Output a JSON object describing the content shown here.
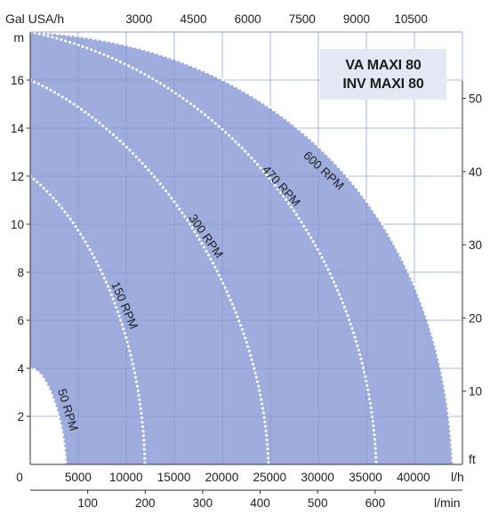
{
  "title": {
    "line1": "VA MAXI 80",
    "line2": "INV MAXI 80"
  },
  "colors": {
    "envelope": "#9fadde",
    "grid": "#7f94cf",
    "curve": "#ffffff",
    "text": "#1e1e1e"
  },
  "chart_data": {
    "type": "area",
    "title": "VA MAXI 80 / INV MAXI 80",
    "grid": true,
    "axes": {
      "x_bottom": {
        "unit": "l/h",
        "range": [
          0,
          46000
        ],
        "ticks": [
          {
            "value": 0,
            "label": "0"
          },
          {
            "value": 5000,
            "label": "5000"
          },
          {
            "value": 10000,
            "label": "10000"
          },
          {
            "value": 15000,
            "label": "15000"
          },
          {
            "value": 20000,
            "label": "20000"
          },
          {
            "value": 25000,
            "label": "25000"
          },
          {
            "value": 30000,
            "label": "30000"
          },
          {
            "value": 35000,
            "label": "35000"
          },
          {
            "value": 40000,
            "label": "40000"
          }
        ]
      },
      "x_bottom_secondary": {
        "unit": "l/min",
        "ticks": [
          {
            "value": 100,
            "label": "100"
          },
          {
            "value": 200,
            "label": "200"
          },
          {
            "value": 300,
            "label": "300"
          },
          {
            "value": 400,
            "label": "400"
          },
          {
            "value": 500,
            "label": "500"
          },
          {
            "value": 600,
            "label": "600"
          }
        ]
      },
      "x_top": {
        "unit": "Gal USA/h",
        "ticks": [
          {
            "value": 3000,
            "label": "3000"
          },
          {
            "value": 4500,
            "label": "4500"
          },
          {
            "value": 6000,
            "label": "6000"
          },
          {
            "value": 7500,
            "label": "7500"
          },
          {
            "value": 9000,
            "label": "9000"
          },
          {
            "value": 10500,
            "label": "10500"
          }
        ]
      },
      "y_left": {
        "unit": "m",
        "range": [
          0,
          18
        ],
        "ticks": [
          {
            "value": 2,
            "label": "2"
          },
          {
            "value": 4,
            "label": "4"
          },
          {
            "value": 6,
            "label": "6"
          },
          {
            "value": 8,
            "label": "8"
          },
          {
            "value": 10,
            "label": "10"
          },
          {
            "value": 12,
            "label": "12"
          },
          {
            "value": 14,
            "label": "14"
          },
          {
            "value": 16,
            "label": "16"
          }
        ]
      },
      "y_right": {
        "unit": "ft",
        "ticks": [
          {
            "value": 10,
            "label": "10"
          },
          {
            "value": 20,
            "label": "20"
          },
          {
            "value": 30,
            "label": "30"
          },
          {
            "value": 40,
            "label": "40"
          },
          {
            "value": 50,
            "label": "50"
          }
        ]
      }
    },
    "series": [
      {
        "name": "50 RPM",
        "shutoff_head_m": 4,
        "max_flow_lh": 3600
      },
      {
        "name": "150 RPM",
        "shutoff_head_m": 12,
        "max_flow_lh": 11500
      },
      {
        "name": "300 RPM",
        "shutoff_head_m": 16,
        "max_flow_lh": 24500
      },
      {
        "name": "470 RPM",
        "shutoff_head_m": 18,
        "max_flow_lh": 35800
      },
      {
        "name": "600 RPM",
        "shutoff_head_m": 18,
        "max_flow_lh": 43800
      }
    ],
    "envelope": {
      "description_from": "600 RPM",
      "lower_bound": "50 RPM"
    }
  }
}
